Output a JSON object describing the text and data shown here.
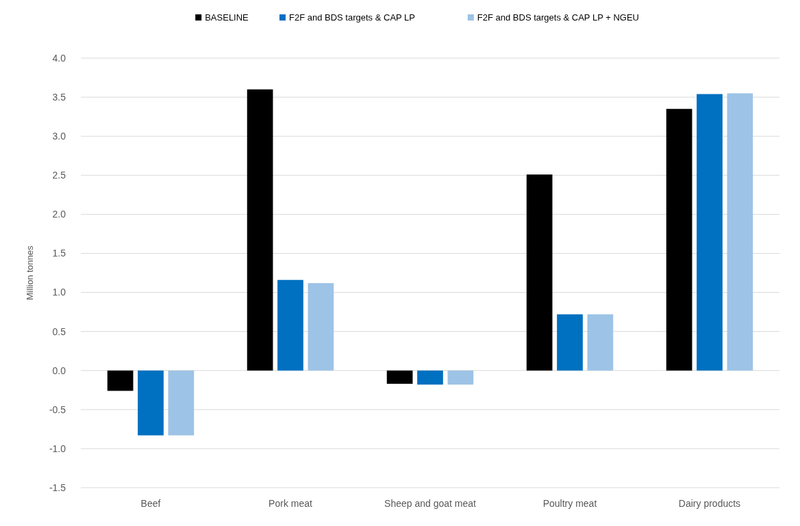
{
  "chart_data": {
    "type": "bar",
    "ylabel": "Million tonnes",
    "categories": [
      "Beef",
      "Pork meat",
      "Sheep and goat meat",
      "Poultry meat",
      "Dairy products"
    ],
    "series": [
      {
        "name": "BASELINE",
        "color": "#000000",
        "values": [
          -0.26,
          3.6,
          -0.17,
          2.51,
          3.35
        ]
      },
      {
        "name": "F2F and BDS targets & CAP LP",
        "color": "#0070c0",
        "values": [
          -0.83,
          1.16,
          -0.18,
          0.72,
          3.54
        ]
      },
      {
        "name": "F2F and BDS targets & CAP LP + NGEU",
        "color": "#9dc3e6",
        "values": [
          -0.83,
          1.12,
          -0.18,
          0.72,
          3.55
        ]
      }
    ],
    "ylim": [
      -1.5,
      4.0
    ],
    "yticks": [
      {
        "value": -1.5,
        "label": "-1.5"
      },
      {
        "value": -1,
        "label": "-1.0"
      },
      {
        "value": -0.5,
        "label": "-0.5"
      },
      {
        "value": 0,
        "label": "0.0"
      },
      {
        "value": 0.5,
        "label": "0.5"
      },
      {
        "value": 1,
        "label": "1.0"
      },
      {
        "value": 1.5,
        "label": "1.5"
      },
      {
        "value": 2,
        "label": "2.0"
      },
      {
        "value": 2.5,
        "label": "2.5"
      },
      {
        "value": 3,
        "label": "3.0"
      },
      {
        "value": 3.5,
        "label": "3.5"
      },
      {
        "value": 4,
        "label": "4.0"
      }
    ],
    "grid": "y",
    "legend": "top"
  }
}
